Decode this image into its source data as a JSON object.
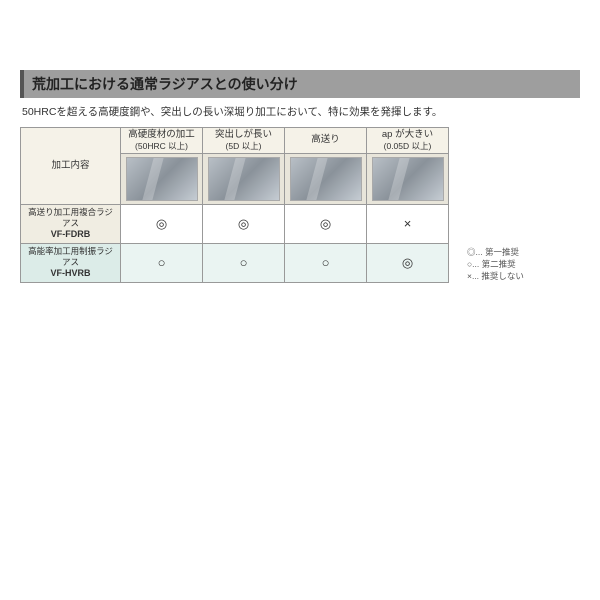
{
  "title": "荒加工における通常ラジアスとの使い分け",
  "subtitle": "50HRCを超える高硬度鋼や、突出しの長い深堀り加工において、特に効果を発揮します。",
  "rowHeader": "加工内容",
  "columns": [
    {
      "line1": "高硬度材の加工",
      "line2": "(50HRC 以上)"
    },
    {
      "line1": "突出しが長い",
      "line2": "(5D 以上)"
    },
    {
      "line1": "高送り",
      "line2": ""
    },
    {
      "line1": "ap が大きい",
      "line2": "(0.05D 以上)"
    }
  ],
  "rows": [
    {
      "label": "高送り加工用複合ラジアス",
      "code": "VF-FDRB",
      "cells": [
        "◎",
        "◎",
        "◎",
        "×"
      ],
      "variant": "a"
    },
    {
      "label": "高能率加工用制振ラジアス",
      "code": "VF-HVRB",
      "cells": [
        "○",
        "○",
        "○",
        "◎"
      ],
      "variant": "b"
    }
  ],
  "legend": [
    "◎... 第一推奨",
    "○... 第二推奨",
    "×... 推奨しない"
  ],
  "colors": {
    "titleBg": "#9e9e9e",
    "headBg": "#f5f2e8",
    "rowA": "#f0ede2",
    "rowB": "#dcece8",
    "cellB": "#eaf4f2",
    "border": "#999999"
  }
}
